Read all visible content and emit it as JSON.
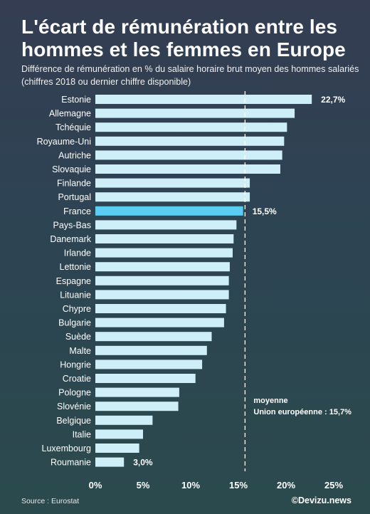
{
  "title": "L'écart de rémunération entre les hommes et les femmes en Europe",
  "subtitle": "Différence de rémunération en % du salaire horaire brut moyen des hommes salariés (chiffres 2018 ou dernier chiffre disponible)",
  "source": "Source : Eurostat",
  "credit": "©Devizu.news",
  "colors": {
    "bar": "#cfeff8",
    "highlight": "#5ccdf2",
    "text": "#ffffff"
  },
  "chart_data": {
    "type": "bar",
    "orientation": "horizontal",
    "title": "L'écart de rémunération entre les hommes et les femmes en Europe",
    "categories": [
      "Estonie",
      "Allemagne",
      "Tchéquie",
      "Royaume-Uni",
      "Autriche",
      "Slovaquie",
      "Finlande",
      "Portugal",
      "France",
      "Pays-Bas",
      "Danemark",
      "Irlande",
      "Lettonie",
      "Espagne",
      "Lituanie",
      "Chypre",
      "Bulgarie",
      "Suède",
      "Malte",
      "Hongrie",
      "Croatie",
      "Pologne",
      "Slovénie",
      "Belgique",
      "Italie",
      "Luxembourg",
      "Roumanie"
    ],
    "values": [
      22.7,
      20.9,
      20.1,
      19.8,
      19.6,
      19.4,
      16.2,
      16.2,
      15.5,
      14.8,
      14.5,
      14.4,
      14.1,
      14.0,
      14.0,
      13.7,
      13.5,
      12.2,
      11.7,
      11.2,
      10.5,
      8.8,
      8.7,
      6.0,
      5.0,
      4.6,
      3.0
    ],
    "highlight": "France",
    "value_labels": {
      "Estonie": "22,7%",
      "France": "15,5%",
      "Roumanie": "3,0%"
    },
    "reference_line": {
      "value": 15.7,
      "label_line1": "moyenne",
      "label_line2": "Union européenne : 15,7%"
    },
    "xlim": [
      0,
      25
    ],
    "xticks": [
      0,
      5,
      10,
      15,
      20,
      25
    ],
    "xtick_labels": [
      "0%",
      "5%",
      "10%",
      "15%",
      "20%",
      "25%"
    ],
    "grid": false,
    "legend": "none"
  }
}
